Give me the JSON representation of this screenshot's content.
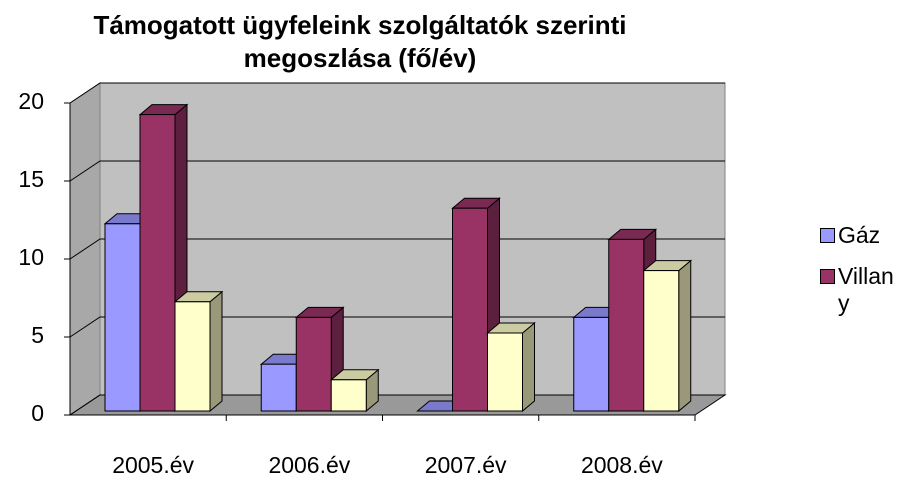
{
  "chart_data": {
    "type": "bar3d",
    "title": [
      "Támogatott ügyfeleink szolgáltatók szerinti",
      "megoszlása (fő/év)"
    ],
    "categories": [
      "2005.év",
      "2006.év",
      "2007.év",
      "2008.év"
    ],
    "series": [
      {
        "name": "Gáz",
        "color": "#9999ff",
        "values": [
          12,
          3,
          0,
          6
        ]
      },
      {
        "name": "Villany",
        "color": "#993366",
        "values": [
          19,
          6,
          13,
          11
        ]
      },
      {
        "color": "#ffffcc",
        "values": [
          7,
          2,
          5,
          9
        ]
      }
    ],
    "ylim": [
      0,
      20
    ],
    "yticks": [
      0,
      5,
      10,
      15,
      20
    ],
    "grid": true,
    "legend": "right"
  }
}
